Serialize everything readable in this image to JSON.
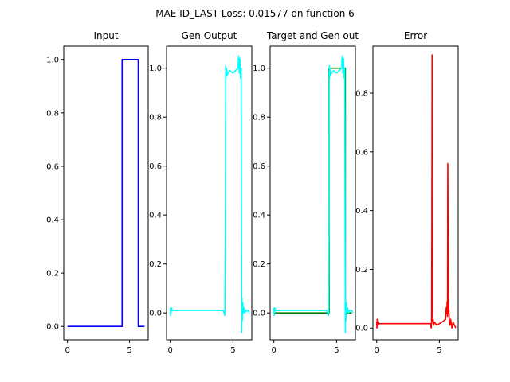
{
  "figure": {
    "suptitle": "MAE ID_LAST Loss: 0.01577 on function 6"
  },
  "chart_data": [
    {
      "type": "line",
      "title": "Input",
      "xlabel": "",
      "ylabel": "",
      "xlim": [
        -0.3,
        6.5
      ],
      "ylim": [
        -0.05,
        1.05
      ],
      "xticks": [
        0,
        5
      ],
      "yticks": [
        0.0,
        0.2,
        0.4,
        0.6,
        0.8,
        1.0
      ],
      "ytick_labels": [
        "0.0",
        "0.2",
        "0.4",
        "0.6",
        "0.8",
        "1.0"
      ],
      "grid": false,
      "series": [
        {
          "color": "#0000ff",
          "x": [
            0.0,
            4.4,
            4.4,
            5.7,
            5.7,
            6.2
          ],
          "y": [
            0.0,
            0.0,
            1.0,
            1.0,
            0.0,
            0.0
          ]
        }
      ]
    },
    {
      "type": "line",
      "title": "Gen Output",
      "xlabel": "",
      "ylabel": "",
      "xlim": [
        -0.3,
        6.5
      ],
      "ylim": [
        -0.11,
        1.09
      ],
      "xticks": [
        0,
        5
      ],
      "yticks": [
        0.0,
        0.2,
        0.4,
        0.6,
        0.8,
        1.0
      ],
      "ytick_labels": [
        "0.0",
        "0.2",
        "0.4",
        "0.6",
        "0.8",
        "1.0"
      ],
      "grid": false,
      "series": [
        {
          "color": "#00ffff",
          "x": [
            0.0,
            0.02,
            0.04,
            0.06,
            0.1,
            0.15,
            4.2,
            4.3,
            4.35,
            4.4,
            4.42,
            4.45,
            4.48,
            4.52,
            4.6,
            4.75,
            5.0,
            5.2,
            5.4,
            5.45,
            5.5,
            5.55,
            5.6,
            5.65,
            5.68,
            5.7,
            5.72,
            5.75,
            5.78,
            5.82,
            5.88,
            5.95,
            6.05,
            6.2,
            6.3
          ],
          "y": [
            0.02,
            -0.01,
            0.02,
            0.0,
            0.02,
            0.01,
            0.01,
            0.0,
            -0.01,
            0.6,
            1.01,
            0.96,
            1.0,
            0.97,
            0.98,
            0.99,
            0.98,
            0.99,
            1.0,
            1.05,
            0.98,
            1.04,
            0.96,
            1.0,
            0.3,
            -0.08,
            0.06,
            -0.03,
            0.04,
            0.0,
            0.02,
            0.0,
            0.01,
            0.01,
            0.0
          ]
        }
      ]
    },
    {
      "type": "line",
      "title": "Target and Gen out",
      "xlabel": "",
      "ylabel": "",
      "xlim": [
        -0.3,
        6.5
      ],
      "ylim": [
        -0.11,
        1.09
      ],
      "xticks": [
        0,
        5
      ],
      "yticks": [
        0.0,
        0.2,
        0.4,
        0.6,
        0.8,
        1.0
      ],
      "ytick_labels": [
        "0.0",
        "0.2",
        "0.4",
        "0.6",
        "0.8",
        "1.0"
      ],
      "grid": false,
      "series": [
        {
          "color": "#008000",
          "x": [
            0.0,
            4.4,
            4.4,
            5.7,
            5.7,
            6.2
          ],
          "y": [
            0.0,
            0.0,
            1.0,
            1.0,
            0.0,
            0.0
          ]
        },
        {
          "color": "#00ffff",
          "x": [
            0.0,
            0.02,
            0.04,
            0.06,
            0.1,
            0.15,
            4.2,
            4.3,
            4.35,
            4.4,
            4.42,
            4.45,
            4.48,
            4.52,
            4.6,
            4.75,
            5.0,
            5.2,
            5.4,
            5.45,
            5.5,
            5.55,
            5.6,
            5.65,
            5.68,
            5.7,
            5.72,
            5.75,
            5.78,
            5.82,
            5.88,
            5.95,
            6.05,
            6.2,
            6.3
          ],
          "y": [
            0.02,
            -0.01,
            0.02,
            0.0,
            0.02,
            0.01,
            0.01,
            0.0,
            -0.01,
            0.6,
            1.01,
            0.96,
            1.0,
            0.97,
            0.98,
            0.99,
            0.98,
            0.99,
            1.0,
            1.05,
            0.98,
            1.04,
            0.96,
            1.0,
            0.3,
            -0.08,
            0.06,
            -0.03,
            0.04,
            0.0,
            0.02,
            0.0,
            0.01,
            0.01,
            0.0
          ]
        }
      ]
    },
    {
      "type": "line",
      "title": "Error",
      "xlabel": "",
      "ylabel": "",
      "xlim": [
        -0.3,
        6.5
      ],
      "ylim": [
        -0.04,
        0.96
      ],
      "xticks": [
        0,
        5
      ],
      "yticks": [
        0.0,
        0.2,
        0.4,
        0.6,
        0.8
      ],
      "ytick_labels": [
        "0.0",
        "0.2",
        "0.4",
        "0.6",
        "0.8"
      ],
      "grid": false,
      "series": [
        {
          "color": "#ff0000",
          "x": [
            0.0,
            0.02,
            0.04,
            0.06,
            0.1,
            0.15,
            4.3,
            4.35,
            4.38,
            4.4,
            4.42,
            4.45,
            4.5,
            4.55,
            4.6,
            4.8,
            5.2,
            5.5,
            5.55,
            5.6,
            5.62,
            5.65,
            5.67,
            5.7,
            5.72,
            5.75,
            5.8,
            5.85,
            5.9,
            6.0,
            6.1,
            6.2,
            6.3
          ],
          "y": [
            0.02,
            0.0,
            0.03,
            0.01,
            0.02,
            0.015,
            0.015,
            0.0,
            0.02,
            0.4,
            0.93,
            0.02,
            0.03,
            0.01,
            0.02,
            0.01,
            0.02,
            0.03,
            0.07,
            0.05,
            0.09,
            0.04,
            0.56,
            0.3,
            0.05,
            0.07,
            0.02,
            0.01,
            0.03,
            0.0,
            0.02,
            0.01,
            0.0
          ]
        }
      ]
    }
  ]
}
